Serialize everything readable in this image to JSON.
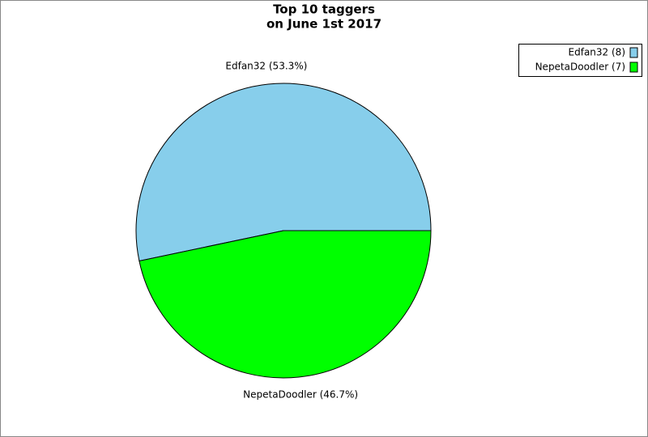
{
  "chart_data": {
    "type": "pie",
    "title": "Top 10 taggers",
    "subtitle": "on June 1st 2017",
    "categories": [
      "Edfan32 (8)",
      "NepetaDoodler (7)"
    ],
    "values": [
      53.3,
      46.7
    ],
    "value_labels": [
      "Edfan32 (53.3%)",
      "NepetaDoodler (46.7%)"
    ],
    "colors": [
      "#87ceeb",
      "#00ff00"
    ],
    "legend": "top-right"
  }
}
